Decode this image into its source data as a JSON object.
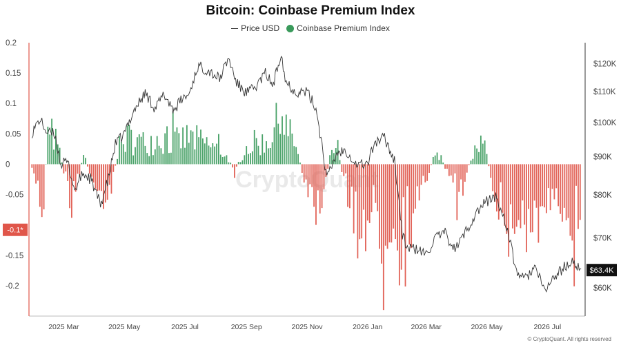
{
  "chart_data": {
    "type": "bar",
    "title": "Bitcoin: Coinbase Premium Index",
    "legend": [
      {
        "name": "Price USD",
        "style": "line",
        "color": "#333333"
      },
      {
        "name": "Coinbase Premium Index",
        "style": "dot",
        "color": "#3a9a5b"
      }
    ],
    "legend_position": "top-center",
    "colors": {
      "positive": "#3a9a5b",
      "negative": "#e0564a",
      "price": "#333333",
      "highlight": "#e0564a"
    },
    "left_axis": {
      "range": [
        -0.25,
        0.2
      ],
      "ticks": [
        0.2,
        0.15,
        0.1,
        0.05,
        0,
        -0.05,
        -0.1,
        -0.15,
        -0.2
      ],
      "tick_labels": [
        "0.2",
        "0.15",
        "0.1",
        "0.05",
        "0",
        "-0.05",
        "",
        "-0.15",
        "-0.2"
      ],
      "marker": {
        "value": -0.108,
        "label": "-0.1*"
      }
    },
    "right_axis": {
      "scale": "log",
      "range": [
        55000,
        128000
      ],
      "ticks": [
        120000,
        110000,
        100000,
        90000,
        80000,
        70000,
        60000
      ],
      "tick_labels": [
        "$120K",
        "$110K",
        "$100K",
        "$90K",
        "$80K",
        "$70K",
        "$60K"
      ],
      "last_value": 63400,
      "last_label": "$63.4K"
    },
    "x_axis": {
      "range": [
        "2025-01-25",
        "2026-08-08"
      ],
      "ticks": [
        "2025-03-01",
        "2025-05-01",
        "2025-07-01",
        "2025-09-01",
        "2025-11-01",
        "2026-01-01",
        "2026-03-01",
        "2026-05-01",
        "2026-07-01"
      ],
      "tick_labels": [
        "2025 Mar",
        "2025 May",
        "2025 Jul",
        "2025 Sep",
        "2025 Nov",
        "2026 Jan",
        "2026 Mar",
        "2026 May",
        "2026 Jul"
      ]
    },
    "premium_index_anchors": {
      "x": [
        "2025-01-28",
        "2025-02-02",
        "2025-02-08",
        "2025-02-12",
        "2025-02-18",
        "2025-02-25",
        "2025-03-02",
        "2025-03-06",
        "2025-03-10",
        "2025-03-15",
        "2025-03-22",
        "2025-03-28",
        "2025-04-03",
        "2025-04-08",
        "2025-04-14",
        "2025-04-20",
        "2025-04-25",
        "2025-05-05",
        "2025-05-20",
        "2025-06-05",
        "2025-06-20",
        "2025-07-05",
        "2025-07-20",
        "2025-08-01",
        "2025-08-10",
        "2025-08-20",
        "2025-09-01",
        "2025-09-10",
        "2025-09-20",
        "2025-10-01",
        "2025-10-06",
        "2025-10-12",
        "2025-10-20",
        "2025-10-28",
        "2025-11-05",
        "2025-11-12",
        "2025-11-18",
        "2025-11-25",
        "2025-12-02",
        "2025-12-10",
        "2025-12-20",
        "2025-12-28",
        "2026-01-05",
        "2026-01-12",
        "2026-01-20",
        "2026-01-28",
        "2026-02-03",
        "2026-02-08",
        "2026-02-15",
        "2026-02-22",
        "2026-03-01",
        "2026-03-08",
        "2026-03-15",
        "2026-03-22",
        "2026-03-30",
        "2026-04-06",
        "2026-04-12",
        "2026-04-20",
        "2026-04-28",
        "2026-05-05",
        "2026-05-12",
        "2026-05-20",
        "2026-05-28",
        "2026-06-05",
        "2026-06-15",
        "2026-06-25",
        "2026-07-05",
        "2026-07-15",
        "2026-07-25",
        "2026-08-04"
      ],
      "y": [
        -0.02,
        -0.03,
        -0.09,
        0.03,
        0.06,
        0.02,
        -0.02,
        -0.04,
        -0.09,
        -0.02,
        0.02,
        -0.03,
        -0.03,
        -0.05,
        -0.06,
        -0.03,
        0.03,
        0.05,
        0.04,
        0.05,
        0.04,
        0.05,
        0.04,
        0.03,
        0.02,
        -0.01,
        0.03,
        0.04,
        0.04,
        0.07,
        0.11,
        0.06,
        0.04,
        -0.02,
        -0.05,
        -0.08,
        -0.04,
        0.02,
        0.03,
        -0.05,
        -0.09,
        -0.11,
        -0.08,
        -0.14,
        -0.12,
        -0.08,
        -0.17,
        -0.09,
        -0.1,
        -0.07,
        -0.03,
        0.01,
        0.02,
        -0.02,
        -0.05,
        -0.03,
        -0.01,
        0.03,
        0.04,
        -0.02,
        -0.07,
        -0.11,
        -0.13,
        -0.09,
        -0.12,
        -0.09,
        -0.1,
        -0.08,
        -0.09,
        -0.08
      ]
    },
    "price_anchors": {
      "x": [
        "2025-01-28",
        "2025-02-05",
        "2025-02-12",
        "2025-02-20",
        "2025-02-26",
        "2025-03-05",
        "2025-03-12",
        "2025-03-20",
        "2025-03-28",
        "2025-04-07",
        "2025-04-15",
        "2025-04-22",
        "2025-05-01",
        "2025-05-10",
        "2025-05-22",
        "2025-06-01",
        "2025-06-10",
        "2025-06-20",
        "2025-06-28",
        "2025-07-05",
        "2025-07-14",
        "2025-07-25",
        "2025-08-05",
        "2025-08-14",
        "2025-08-22",
        "2025-09-01",
        "2025-09-10",
        "2025-09-20",
        "2025-09-28",
        "2025-10-06",
        "2025-10-10",
        "2025-10-20",
        "2025-11-01",
        "2025-11-10",
        "2025-11-21",
        "2025-12-01",
        "2025-12-10",
        "2025-12-20",
        "2026-01-01",
        "2026-01-08",
        "2026-01-18",
        "2026-01-28",
        "2026-02-05",
        "2026-02-10",
        "2026-02-20",
        "2026-03-01",
        "2026-03-10",
        "2026-03-20",
        "2026-03-30",
        "2026-04-10",
        "2026-04-20",
        "2026-05-01",
        "2026-05-10",
        "2026-05-20",
        "2026-05-30",
        "2026-06-08",
        "2026-06-18",
        "2026-06-28",
        "2026-07-08",
        "2026-07-18",
        "2026-07-28",
        "2026-08-04"
      ],
      "y": [
        97000,
        101000,
        97000,
        96500,
        88000,
        88500,
        81000,
        85500,
        84000,
        77500,
        84000,
        93500,
        96500,
        103500,
        109500,
        104500,
        109000,
        104000,
        107500,
        109000,
        119000,
        117500,
        114500,
        122000,
        113000,
        109500,
        111500,
        116500,
        112000,
        124500,
        114000,
        110000,
        110000,
        104500,
        84000,
        91000,
        92000,
        88000,
        88000,
        94000,
        95500,
        89000,
        70500,
        68000,
        67500,
        66500,
        70000,
        71000,
        67500,
        71500,
        75500,
        78500,
        79500,
        73500,
        63500,
        61500,
        64000,
        59500,
        62000,
        64000,
        65000,
        63400
      ]
    },
    "watermark": "CryptoQuant",
    "grid": false
  },
  "footer": {
    "credit": "© CryptoQuant. All rights reserved"
  }
}
